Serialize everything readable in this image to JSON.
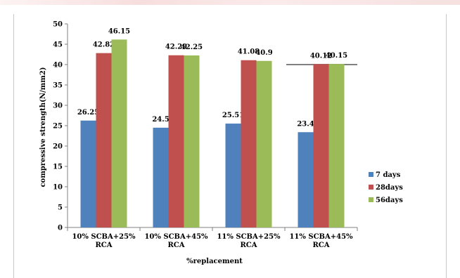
{
  "chart_data": {
    "type": "bar",
    "title": "",
    "xlabel": "%replacement",
    "ylabel": "compressive strength(N/mm2)",
    "ylim": [
      0,
      50
    ],
    "yticks": [
      0,
      5,
      10,
      15,
      20,
      25,
      30,
      35,
      40,
      45,
      50
    ],
    "grid": false,
    "legend_position": "right",
    "categories": [
      [
        "10% SCBA+25%",
        "RCA"
      ],
      [
        "10% SCBA+45%",
        "RCA"
      ],
      [
        "11% SCBA+25%",
        "RCA"
      ],
      [
        "11% SCBA+45%",
        "RCA"
      ]
    ],
    "series": [
      {
        "name": "7 days",
        "color": "#4f81bd",
        "values": [
          26.25,
          24.5,
          25.51,
          23.4
        ],
        "labels": [
          "26.25",
          "24.5",
          "25.51",
          "23.4"
        ]
      },
      {
        "name": "28days",
        "color": "#c0504d",
        "values": [
          42.82,
          42.29,
          41.08,
          40.12
        ],
        "labels": [
          "42.82",
          "42.29",
          "41.08",
          "40.12"
        ]
      },
      {
        "name": "56days",
        "color": "#9bbb59",
        "values": [
          46.15,
          42.25,
          40.9,
          40.15
        ],
        "labels": [
          "46.15",
          "42.25",
          "40.9",
          "40.15"
        ]
      }
    ],
    "reference_line_value": 40
  }
}
